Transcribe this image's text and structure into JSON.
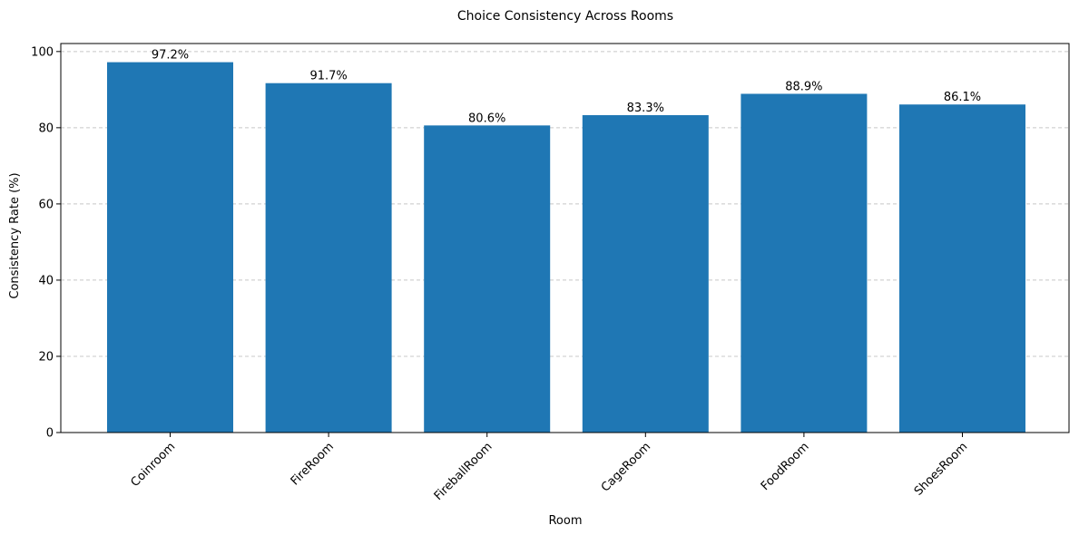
{
  "chart_data": {
    "type": "bar",
    "title": "Choice Consistency Across Rooms",
    "xlabel": "Room",
    "ylabel": "Consistency Rate (%)",
    "categories": [
      "Coinroom",
      "FireRoom",
      "FireballRoom",
      "CageRoom",
      "FoodRoom",
      "ShoesRoom"
    ],
    "values": [
      97.2,
      91.7,
      80.6,
      83.3,
      88.9,
      86.1
    ],
    "value_labels": [
      "97.2%",
      "91.7%",
      "80.6%",
      "83.3%",
      "88.9%",
      "86.1%"
    ],
    "ylim": [
      0,
      102.1
    ],
    "yticks": [
      0,
      20,
      40,
      60,
      80,
      100
    ],
    "ytick_labels": [
      "0",
      "20",
      "40",
      "60",
      "80",
      "100"
    ],
    "grid": "y-dashed",
    "legend": "none",
    "bar_color": "#1f77b4",
    "x_tick_rotation": 45
  }
}
